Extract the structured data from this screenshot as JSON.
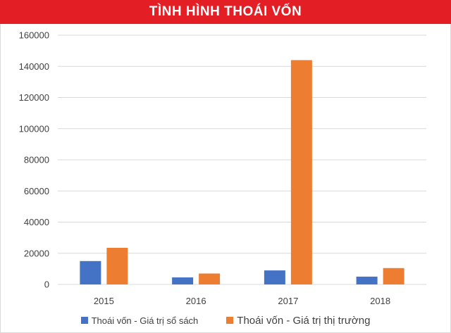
{
  "title": "TÌNH HÌNH THOÁI VỐN",
  "colors": {
    "header": "#e31e24",
    "series1": "#4472c4",
    "series2": "#ed7d31",
    "grid": "#d9d9d9"
  },
  "chart_data": {
    "type": "bar",
    "categories": [
      "2015",
      "2016",
      "2017",
      "2018"
    ],
    "series": [
      {
        "name": "Thoái vốn - Giá trị sổ sách",
        "values": [
          15000,
          4500,
          9000,
          5000
        ]
      },
      {
        "name": "Thoái vốn - Giá trị thị trường",
        "values": [
          23500,
          7000,
          144000,
          10500
        ]
      }
    ],
    "yticks": [
      "0",
      "20000",
      "40000",
      "60000",
      "80000",
      "100000",
      "120000",
      "140000",
      "160000"
    ],
    "ylim": [
      0,
      160000
    ],
    "grid": true,
    "legend": "bottom"
  }
}
